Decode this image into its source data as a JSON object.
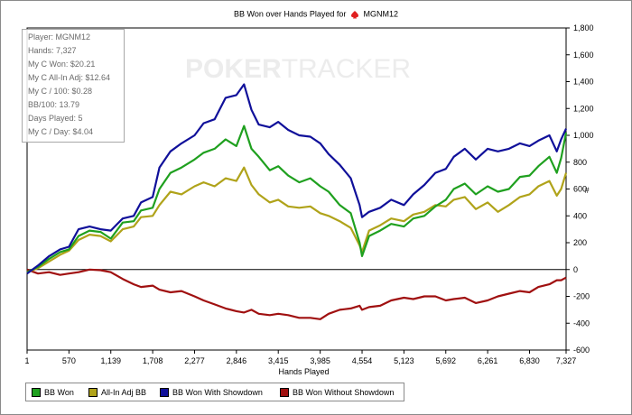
{
  "title": {
    "prefix": "BB Won over Hands Played for",
    "player": "MGNM12"
  },
  "watermark": {
    "left": "POKER",
    "right": "TRACKER"
  },
  "stats": [
    "Player: MGNM12",
    "Hands: 7,327",
    "My C Won: $20.21",
    "My C All-In Adj: $12.64",
    "My C / 100: $0.28",
    "BB/100: 13.79",
    "Days Played: 5",
    "My C / Day: $4.04"
  ],
  "legend": [
    {
      "label": "BB Won",
      "color": "#1fa01f"
    },
    {
      "label": "All-In Adj BB",
      "color": "#b0a31a"
    },
    {
      "label": "BB Won With Showdown",
      "color": "#10109a"
    },
    {
      "label": "BB Won Without Showdown",
      "color": "#a01010"
    }
  ],
  "chart_data": {
    "type": "line",
    "title": "BB Won over Hands Played for MGNM12",
    "xlabel": "Hands Played",
    "ylabel": "#",
    "xlim": [
      1,
      7327
    ],
    "ylim": [
      -600,
      1800
    ],
    "x_ticks": [
      1,
      570,
      1139,
      1708,
      2277,
      2846,
      3415,
      3985,
      4554,
      5123,
      5692,
      6261,
      6830,
      7327
    ],
    "x_tick_labels": [
      "1",
      "570",
      "1,139",
      "1,708",
      "2,277",
      "2,846",
      "3,415",
      "3,985",
      "4,554",
      "5,123",
      "5,692",
      "6,261",
      "6,830",
      "7,327"
    ],
    "y_ticks": [
      -600,
      -400,
      -200,
      0,
      200,
      400,
      600,
      800,
      1000,
      1200,
      1400,
      1600,
      1800
    ],
    "y_tick_labels": [
      "-600",
      "-400",
      "-200",
      "0",
      "200",
      "400",
      "600",
      "800",
      "1,000",
      "1,200",
      "1,400",
      "1,600",
      "1,800"
    ],
    "y_axis_side": "right",
    "grid": false,
    "legend_position": "bottom",
    "x": [
      1,
      150,
      300,
      450,
      570,
      700,
      850,
      1000,
      1139,
      1300,
      1450,
      1550,
      1708,
      1800,
      1950,
      2100,
      2277,
      2400,
      2550,
      2700,
      2846,
      2950,
      3050,
      3150,
      3300,
      3415,
      3550,
      3700,
      3850,
      3985,
      4100,
      4250,
      4400,
      4520,
      4554,
      4650,
      4800,
      4950,
      5123,
      5250,
      5400,
      5550,
      5692,
      5800,
      5950,
      6100,
      6261,
      6400,
      6550,
      6700,
      6830,
      6950,
      7100,
      7200,
      7260,
      7327
    ],
    "series": [
      {
        "name": "BB Won",
        "color": "#1fa01f",
        "values": [
          -20,
          20,
          80,
          130,
          150,
          250,
          290,
          280,
          230,
          350,
          360,
          440,
          460,
          600,
          720,
          760,
          820,
          870,
          900,
          970,
          920,
          1070,
          900,
          840,
          740,
          770,
          700,
          650,
          680,
          620,
          580,
          480,
          420,
          200,
          100,
          250,
          290,
          340,
          320,
          380,
          400,
          470,
          520,
          600,
          640,
          560,
          620,
          580,
          600,
          690,
          700,
          770,
          840,
          720,
          830,
          1020
        ]
      },
      {
        "name": "All-In Adj BB",
        "color": "#b0a31a",
        "values": [
          -20,
          10,
          60,
          110,
          140,
          220,
          260,
          250,
          210,
          300,
          320,
          390,
          400,
          480,
          580,
          560,
          620,
          650,
          620,
          680,
          660,
          760,
          630,
          560,
          500,
          520,
          470,
          460,
          470,
          420,
          400,
          360,
          310,
          180,
          130,
          290,
          330,
          380,
          360,
          410,
          430,
          480,
          470,
          520,
          540,
          450,
          500,
          430,
          480,
          540,
          560,
          620,
          660,
          550,
          600,
          720
        ]
      },
      {
        "name": "BB Won With Showdown",
        "color": "#10109a",
        "values": [
          -30,
          30,
          100,
          150,
          170,
          300,
          320,
          300,
          290,
          380,
          400,
          500,
          540,
          760,
          880,
          940,
          1000,
          1090,
          1120,
          1280,
          1300,
          1380,
          1190,
          1080,
          1060,
          1100,
          1040,
          1000,
          990,
          940,
          860,
          780,
          680,
          480,
          390,
          430,
          460,
          520,
          480,
          560,
          630,
          720,
          750,
          840,
          900,
          820,
          900,
          880,
          900,
          940,
          920,
          960,
          1000,
          880,
          970,
          1050
        ]
      },
      {
        "name": "BB Won Without Showdown",
        "color": "#a01010",
        "values": [
          0,
          -30,
          -20,
          -40,
          -30,
          -20,
          0,
          -5,
          -20,
          -70,
          -110,
          -130,
          -120,
          -150,
          -170,
          -160,
          -200,
          -230,
          -260,
          -290,
          -310,
          -320,
          -300,
          -330,
          -340,
          -330,
          -340,
          -360,
          -360,
          -370,
          -330,
          -300,
          -290,
          -270,
          -300,
          -280,
          -270,
          -230,
          -210,
          -220,
          -200,
          -200,
          -230,
          -220,
          -210,
          -250,
          -230,
          -200,
          -180,
          -160,
          -170,
          -130,
          -110,
          -80,
          -80,
          -60
        ]
      }
    ]
  }
}
